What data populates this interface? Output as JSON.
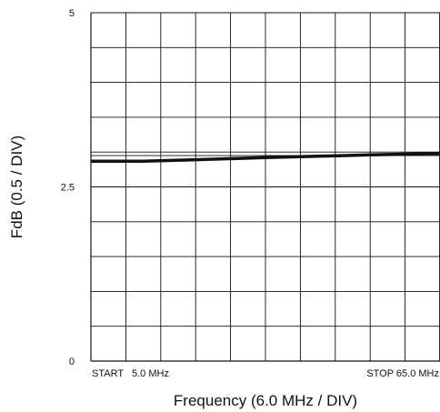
{
  "chart_data": {
    "type": "line",
    "xlabel": "Frequency (6.0 MHz / DIV)",
    "ylabel": "FdB (0.5 / DIV)",
    "xlim": [
      5.0,
      65.0
    ],
    "ylim": [
      0,
      5
    ],
    "x_divisions": 10,
    "y_divisions": 10,
    "yticks": [
      "0",
      "2.5",
      "5"
    ],
    "start_label": "START   5.0 MHz",
    "stop_label": "STOP 65.0 MHz",
    "grid": true,
    "reference_line": 2.95,
    "series": [
      {
        "x": [
          5.0,
          14.0,
          23.0,
          35.0,
          44.0,
          53.0,
          65.0
        ],
        "y": [
          2.87,
          2.87,
          2.89,
          2.92,
          2.94,
          2.96,
          2.98
        ]
      }
    ],
    "colors": {
      "line": "#111111",
      "grid": "#111111"
    }
  }
}
